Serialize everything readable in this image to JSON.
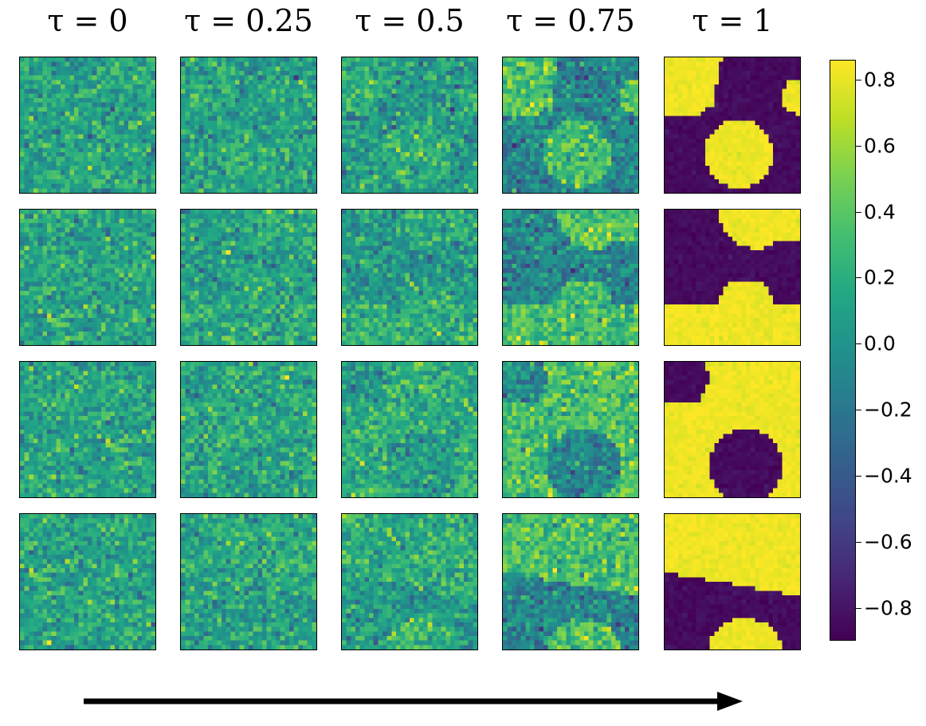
{
  "chart_data": {
    "type": "heatmap",
    "layout": {
      "rows": 4,
      "cols": 5
    },
    "grid_size": 30,
    "columns": [
      {
        "label": "τ = 0",
        "tau": 0
      },
      {
        "label": "τ = 0.25",
        "tau": 0.25
      },
      {
        "label": "τ = 0.5",
        "tau": 0.5
      },
      {
        "label": "τ = 0.75",
        "tau": 0.75
      },
      {
        "label": "τ = 1",
        "tau": 1
      }
    ],
    "colormap": "viridis",
    "value_range": [
      -0.9,
      0.86
    ],
    "colorbar": {
      "ticks": [
        0.8,
        0.6,
        0.4,
        0.2,
        0.0,
        -0.2,
        -0.4,
        -0.6,
        -0.8
      ],
      "tick_labels": [
        "0.8",
        "0.6",
        "0.4",
        "0.2",
        "0.0",
        "−0.2",
        "−0.4",
        "−0.6",
        "−0.8"
      ]
    },
    "arrow": {
      "direction": "right"
    }
  }
}
